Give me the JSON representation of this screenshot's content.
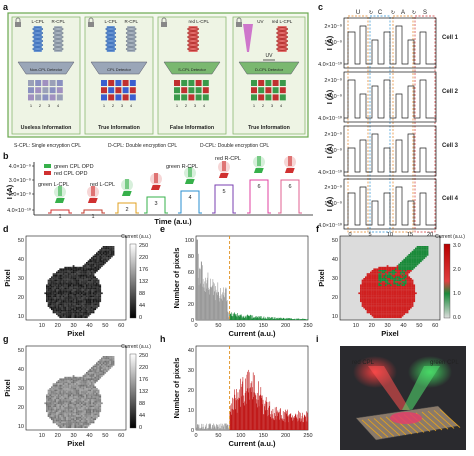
{
  "panel_letters": {
    "a": "a",
    "b": "b",
    "c": "c",
    "d": "d",
    "e": "e",
    "f": "f",
    "g": "g",
    "h": "h",
    "i": "i"
  },
  "panel_a": {
    "boxes": [
      {
        "top_labels": [
          "L-CPL",
          "R-CPL"
        ],
        "detector": "Non-CPL Detector",
        "caption": "Useless Information",
        "numbers": [
          "1",
          "2",
          "3",
          "4"
        ]
      },
      {
        "top_labels": [
          "L-CPL",
          "R-CPL"
        ],
        "detector": "CPL Detector",
        "caption": "True Information",
        "numbers": [
          "1",
          "2",
          "3",
          "4"
        ]
      },
      {
        "top_labels": [
          "red L-CPL"
        ],
        "detector": "S-CPL Detector",
        "caption": "False Information",
        "numbers": [
          "1",
          "2",
          "3",
          "4"
        ]
      },
      {
        "top_labels": [
          "UV",
          "red L-CPL"
        ],
        "detector": "D-CPL Detector",
        "caption": "True Information",
        "numbers": [
          "1",
          "2",
          "3",
          "4"
        ]
      }
    ],
    "uv_label": "UV",
    "delta_label": "Δ",
    "legend": [
      "S-CPL: Single encryption CPL",
      "D-CPL: Double encryption CPL",
      "D-CPL: Double encryption CPL"
    ]
  },
  "panel_b": {
    "ylabel": "I (A)",
    "xlabel": "Time (a.u.)",
    "y_exponent": "×10⁻⁹",
    "yticks": [
      "4.0×10⁻⁹",
      "3.0×10⁻⁹",
      "2.0×10⁻⁹",
      "4.0×10⁻¹⁰"
    ],
    "legend": [
      "green CPL OPD",
      "red CPL OPD"
    ],
    "annotations": [
      "green L-CPL",
      "red L-CPL",
      "green R-CPL",
      "red R-CPL"
    ],
    "step_labels": [
      "1",
      "1",
      "2",
      "3",
      "4",
      "5",
      "6",
      "6"
    ],
    "colors": [
      "#d03030",
      "#c0392b",
      "#e0a020",
      "#36b04a",
      "#2a8fd0",
      "#7a3fb0",
      "#e040a0",
      "#e06090"
    ]
  },
  "panel_c": {
    "ylabel": "I (A)",
    "xlabel": "Time (s)",
    "header_letters": [
      "U",
      "C",
      "A",
      "S"
    ],
    "cells": [
      "Cell 1",
      "Cell 2",
      "Cell 3",
      "Cell 4"
    ],
    "yticks": [
      "2×10⁻⁹",
      "1×10⁻⁹",
      "4.0×10⁻¹⁰"
    ],
    "xticks": [
      "0",
      "5",
      "10",
      "15",
      "20"
    ]
  },
  "panel_d": {
    "xlabel": "Pixel",
    "ylabel": "Pixel",
    "colorbar_title": "Current (a.u.)",
    "colorbar_ticks": [
      "250",
      "220",
      "176",
      "132",
      "88",
      "44",
      "0"
    ],
    "xticks": [
      "10",
      "20",
      "30",
      "40",
      "50",
      "60"
    ],
    "yticks": [
      "50",
      "40",
      "30",
      "20",
      "10"
    ]
  },
  "panel_e": {
    "xlabel": "Current (a.u.)",
    "ylabel": "Number of pixels",
    "xticks": [
      "0",
      "50",
      "100",
      "150",
      "200",
      "250"
    ],
    "yticks": [
      "0",
      "20",
      "40",
      "60",
      "80",
      "100"
    ]
  },
  "panel_f": {
    "xlabel": "Pixel",
    "ylabel": "Pixel",
    "colorbar_title": "Current (a.u.)",
    "colorbar_ticks": [
      "3.0",
      "2.0",
      "1.0",
      "0.0"
    ],
    "xticks": [
      "10",
      "20",
      "30",
      "40",
      "50",
      "60"
    ],
    "yticks": [
      "50",
      "40",
      "30",
      "20",
      "10"
    ]
  },
  "panel_g": {
    "xlabel": "Pixel",
    "ylabel": "Pixel",
    "colorbar_title": "Current (a.u.)",
    "colorbar_ticks": [
      "250",
      "220",
      "176",
      "132",
      "88",
      "44",
      "0"
    ],
    "xticks": [
      "10",
      "20",
      "30",
      "40",
      "50",
      "60"
    ],
    "yticks": [
      "50",
      "40",
      "30",
      "20",
      "10"
    ]
  },
  "panel_h": {
    "xlabel": "Current (a.u.)",
    "ylabel": "Number of pixels",
    "xticks": [
      "0",
      "50",
      "100",
      "150",
      "200",
      "250"
    ],
    "yticks": [
      "0",
      "10",
      "20",
      "30",
      "40"
    ]
  },
  "panel_i": {
    "labels": [
      "red CPL",
      "green CPL"
    ]
  }
}
